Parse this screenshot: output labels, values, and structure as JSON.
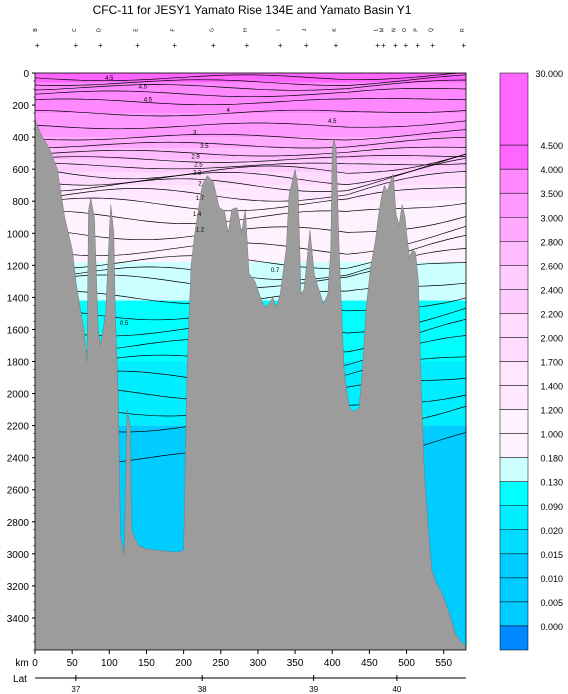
{
  "chart_data": {
    "type": "section-contour",
    "title": "CFC-11 for JESY1 Yamato Rise 134E and Yamato Basin Y1",
    "xlabel": "km",
    "ylabel": "",
    "xlim": [
      0,
      580
    ],
    "ylim": [
      3600,
      0
    ],
    "x_ticks": [
      0,
      50,
      100,
      150,
      200,
      250,
      300,
      350,
      400,
      450,
      500,
      550
    ],
    "y_ticks": [
      0,
      200,
      400,
      600,
      800,
      1000,
      1200,
      1400,
      1600,
      1800,
      2000,
      2200,
      2400,
      2600,
      2800,
      3000,
      3200,
      3400
    ],
    "lat_label": "Lat",
    "lat_ticks": [
      {
        "label": "37",
        "km": 55
      },
      {
        "label": "38",
        "km": 225
      },
      {
        "label": "39",
        "km": 375
      },
      {
        "label": "40",
        "km": 487
      }
    ],
    "stations": [
      {
        "name": "B",
        "km": 3
      },
      {
        "name": "C",
        "km": 55
      },
      {
        "name": "D",
        "km": 88
      },
      {
        "name": "E",
        "km": 138
      },
      {
        "name": "F",
        "km": 188
      },
      {
        "name": "G",
        "km": 240
      },
      {
        "name": "H",
        "km": 285
      },
      {
        "name": "I",
        "km": 330
      },
      {
        "name": "J",
        "km": 365
      },
      {
        "name": "K",
        "km": 405
      },
      {
        "name": "L",
        "km": 461
      },
      {
        "name": "M",
        "km": 469
      },
      {
        "name": "N",
        "km": 485
      },
      {
        "name": "O",
        "km": 499
      },
      {
        "name": "P",
        "km": 515
      },
      {
        "name": "Q",
        "km": 535
      },
      {
        "name": "R",
        "km": 577
      }
    ],
    "legend_levels": [
      "30.000",
      "4.500",
      "4.000",
      "3.500",
      "3.000",
      "2.800",
      "2.600",
      "2.400",
      "2.200",
      "2.000",
      "1.700",
      "1.400",
      "1.200",
      "1.000",
      "0.180",
      "0.130",
      "0.090",
      "0.020",
      "0.015",
      "0.010",
      "0.005",
      "0.000"
    ],
    "contour_labels": [
      {
        "text": "4.5",
        "km": 100,
        "depth": 30
      },
      {
        "text": "4.5",
        "km": 145,
        "depth": 85
      },
      {
        "text": "4.5",
        "km": 152,
        "depth": 165
      },
      {
        "text": "4",
        "km": 260,
        "depth": 230
      },
      {
        "text": "4.5",
        "km": 400,
        "depth": 300
      },
      {
        "text": "3",
        "km": 215,
        "depth": 370
      },
      {
        "text": "3.5",
        "km": 228,
        "depth": 455
      },
      {
        "text": "2.9",
        "km": 216,
        "depth": 520
      },
      {
        "text": "2.5",
        "km": 220,
        "depth": 570
      },
      {
        "text": "2.2",
        "km": 218,
        "depth": 620
      },
      {
        "text": "2",
        "km": 222,
        "depth": 690
      },
      {
        "text": "1.7",
        "km": 222,
        "depth": 780
      },
      {
        "text": "1.4",
        "km": 218,
        "depth": 880
      },
      {
        "text": "1.2",
        "km": 222,
        "depth": 975
      },
      {
        "text": "0.7",
        "km": 323,
        "depth": 1230
      },
      {
        "text": "0.5",
        "km": 120,
        "depth": 1560
      }
    ]
  },
  "colors": {
    "bathymetry": "#9c9c9c",
    "band_30": "#ff66ff",
    "band_4_5": "#ff88ff",
    "band_4": "#ff99ff",
    "band_3_5": "#ffaaff",
    "band_3": "#ffbbff",
    "band_2_5": "#ffccff",
    "band_2": "#ffdcff",
    "band_1_7": "#ffe8ff",
    "band_1_2": "#fff2ff",
    "band_1": "#ccffff",
    "band_0_5": "#00ffff",
    "band_0_2": "#00eeff",
    "band_0_1": "#00ddff",
    "band_0_05": "#00ccff",
    "band_0": "#0088ff"
  }
}
